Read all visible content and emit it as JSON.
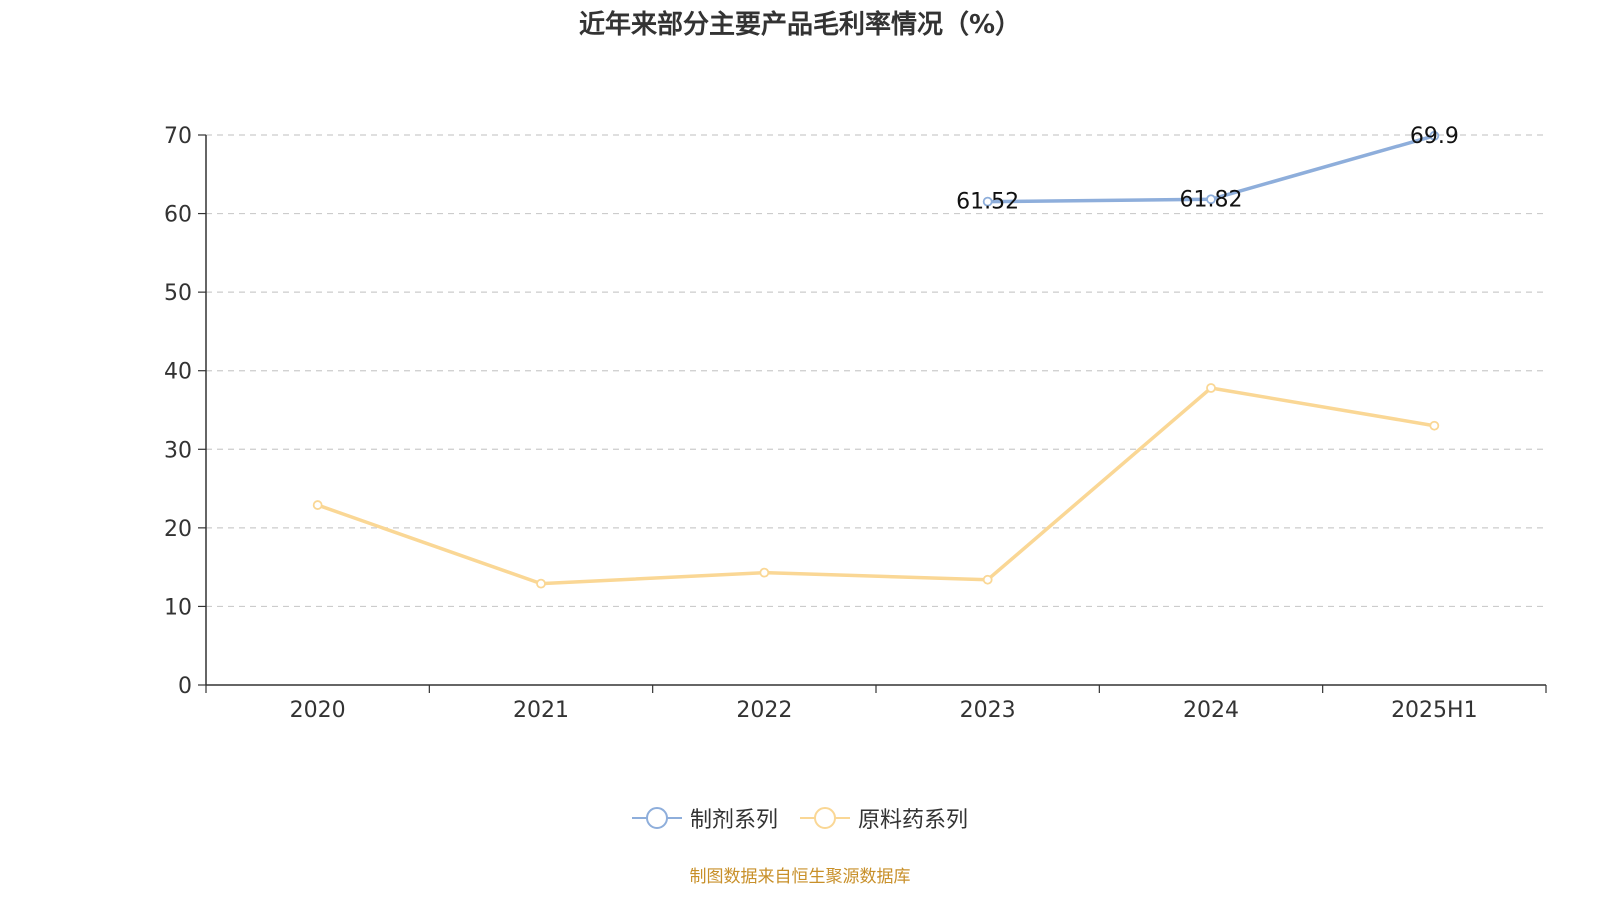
{
  "chart_data": {
    "type": "line",
    "title": "近年来部分主要产品毛利率情况（%）",
    "categories": [
      "2020",
      "2021",
      "2022",
      "2023",
      "2024",
      "2025H1"
    ],
    "ylim": [
      0,
      70
    ],
    "yticks": [
      0,
      10,
      20,
      30,
      40,
      50,
      60,
      70
    ],
    "grid": true,
    "legend_position": "bottom",
    "series": [
      {
        "name": "制剂系列",
        "color": "#8eaedb",
        "values": [
          null,
          null,
          null,
          61.52,
          61.82,
          69.9
        ],
        "labels": [
          "",
          "",
          "",
          "61.52",
          "61.82",
          "69.9"
        ]
      },
      {
        "name": "原料药系列",
        "color": "#fad795",
        "values": [
          22.9,
          12.9,
          14.3,
          13.4,
          37.8,
          33.0
        ],
        "labels": [
          "",
          "",
          "",
          "",
          "",
          ""
        ]
      }
    ]
  },
  "footer": {
    "source": "制图数据来自恒生聚源数据库"
  }
}
